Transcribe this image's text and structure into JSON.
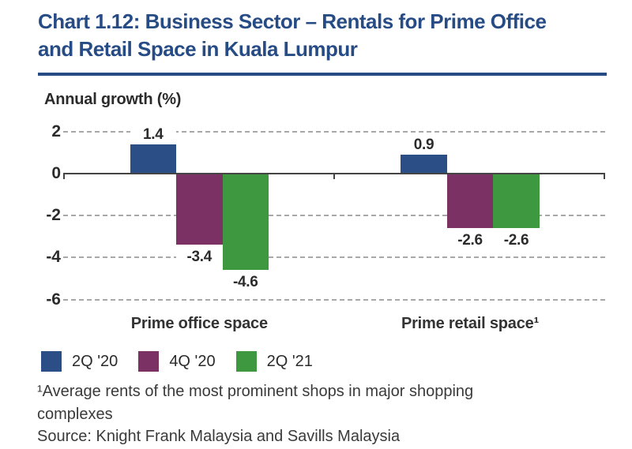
{
  "title": {
    "line1": "Chart 1.12: Business Sector – Rentals for Prime Office",
    "line2": "and Retail Space in Kuala Lumpur"
  },
  "chart_data": {
    "type": "bar",
    "title": "Chart 1.12: Business Sector – Rentals for Prime Office and Retail Space in Kuala Lumpur",
    "ylabel": "Annual growth (%)",
    "categories": [
      "Prime office space",
      "Prime retail space¹"
    ],
    "series": [
      {
        "name": "2Q '20",
        "color": "#2B4E87",
        "values": [
          1.4,
          0.9
        ]
      },
      {
        "name": "4Q '20",
        "color": "#7B3163",
        "values": [
          -3.4,
          -2.6
        ]
      },
      {
        "name": "2Q '21",
        "color": "#3E9840",
        "values": [
          -4.6,
          -2.6
        ]
      }
    ],
    "ylim": [
      -6,
      2
    ],
    "yticks": [
      2,
      0,
      -2,
      -4,
      -6
    ],
    "grid": "horizontal-dashed",
    "legend_position": "bottom-left",
    "value_labels": true
  },
  "footnote": {
    "line1": "¹Average rents of the most prominent shops in major shopping",
    "line2": "complexes"
  },
  "source": "Source: Knight Frank Malaysia and Savills Malaysia",
  "colors": {
    "title_blue": "#274C85",
    "bar_blue": "#2B4E87",
    "bar_purple": "#7B3163",
    "bar_green": "#3E9840",
    "text_dark": "#2B2B2B",
    "text_gray": "#3A3A3A",
    "grid_gray": "#A8A8A8",
    "axis_dark": "#444444"
  }
}
